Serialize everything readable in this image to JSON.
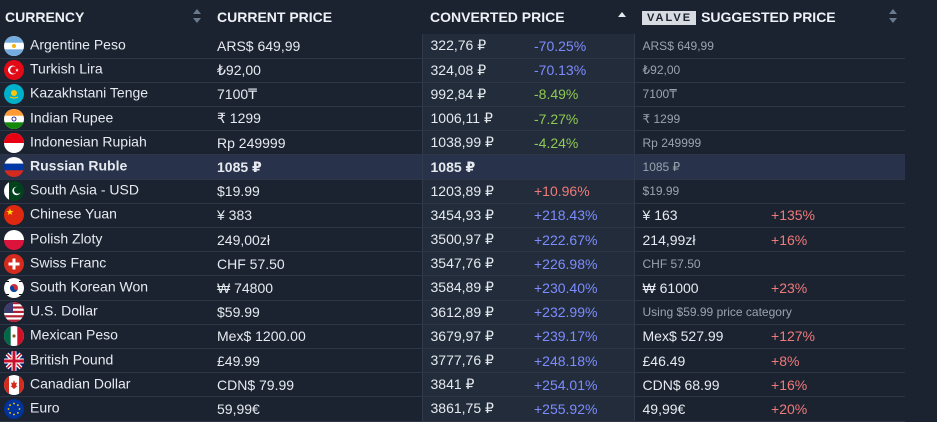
{
  "header": {
    "currency": "CURRENCY",
    "current_price": "CURRENT PRICE",
    "converted_price": "CONVERTED PRICE",
    "valve_badge": "VALVE",
    "suggested_price": "SUGGESTED PRICE"
  },
  "rows": [
    {
      "name": "Argentine Peso",
      "current": "ARS$ 649,99",
      "converted": "322,76 ₽",
      "diff": "-70.25%",
      "suggested": "ARS$ 649,99",
      "sug_diff": ""
    },
    {
      "name": "Turkish Lira",
      "current": "₺92,00",
      "converted": "324,08 ₽",
      "diff": "-70.13%",
      "suggested": "₺92,00",
      "sug_diff": ""
    },
    {
      "name": "Kazakhstani Tenge",
      "current": "7100₸",
      "converted": "992,84 ₽",
      "diff": "-8.49%",
      "suggested": "7100₸",
      "sug_diff": ""
    },
    {
      "name": "Indian Rupee",
      "current": "₹ 1299",
      "converted": "1006,11 ₽",
      "diff": "-7.27%",
      "suggested": "₹ 1299",
      "sug_diff": ""
    },
    {
      "name": "Indonesian Rupiah",
      "current": "Rp 249999",
      "converted": "1038,99 ₽",
      "diff": "-4.24%",
      "suggested": "Rp 249999",
      "sug_diff": ""
    },
    {
      "name": "Russian Ruble",
      "current": "1085 ₽",
      "converted": "1085 ₽",
      "diff": "",
      "suggested": "1085 ₽",
      "sug_diff": ""
    },
    {
      "name": "South Asia - USD",
      "current": "$19.99",
      "converted": "1203,89 ₽",
      "diff": "+10.96%",
      "suggested": "$19.99",
      "sug_diff": ""
    },
    {
      "name": "Chinese Yuan",
      "current": "¥ 383",
      "converted": "3454,93 ₽",
      "diff": "+218.43%",
      "suggested": "¥ 163",
      "sug_diff": "+135%"
    },
    {
      "name": "Polish Zloty",
      "current": "249,00zł",
      "converted": "3500,97 ₽",
      "diff": "+222.67%",
      "suggested": "214,99zł",
      "sug_diff": "+16%"
    },
    {
      "name": "Swiss Franc",
      "current": "CHF 57.50",
      "converted": "3547,76 ₽",
      "diff": "+226.98%",
      "suggested": "CHF 57.50",
      "sug_diff": ""
    },
    {
      "name": "South Korean Won",
      "current": "₩ 74800",
      "converted": "3584,89 ₽",
      "diff": "+230.40%",
      "suggested": "₩ 61000",
      "sug_diff": "+23%"
    },
    {
      "name": "U.S. Dollar",
      "current": "$59.99",
      "converted": "3612,89 ₽",
      "diff": "+232.99%",
      "suggested": "Using $59.99 price category",
      "sug_diff": ""
    },
    {
      "name": "Mexican Peso",
      "current": "Mex$ 1200.00",
      "converted": "3679,97 ₽",
      "diff": "+239.17%",
      "suggested": "Mex$ 527.99",
      "sug_diff": "+127%"
    },
    {
      "name": "British Pound",
      "current": "£49.99",
      "converted": "3777,76 ₽",
      "diff": "+248.18%",
      "suggested": "£46.49",
      "sug_diff": "+8%"
    },
    {
      "name": "Canadian Dollar",
      "current": "CDN$ 79.99",
      "converted": "3841 ₽",
      "diff": "+254.01%",
      "suggested": "CDN$ 68.99",
      "sug_diff": "+16%"
    },
    {
      "name": "Euro",
      "current": "59,99€",
      "converted": "3861,75 ₽",
      "diff": "+255.92%",
      "suggested": "49,99€",
      "sug_diff": "+20%"
    }
  ]
}
